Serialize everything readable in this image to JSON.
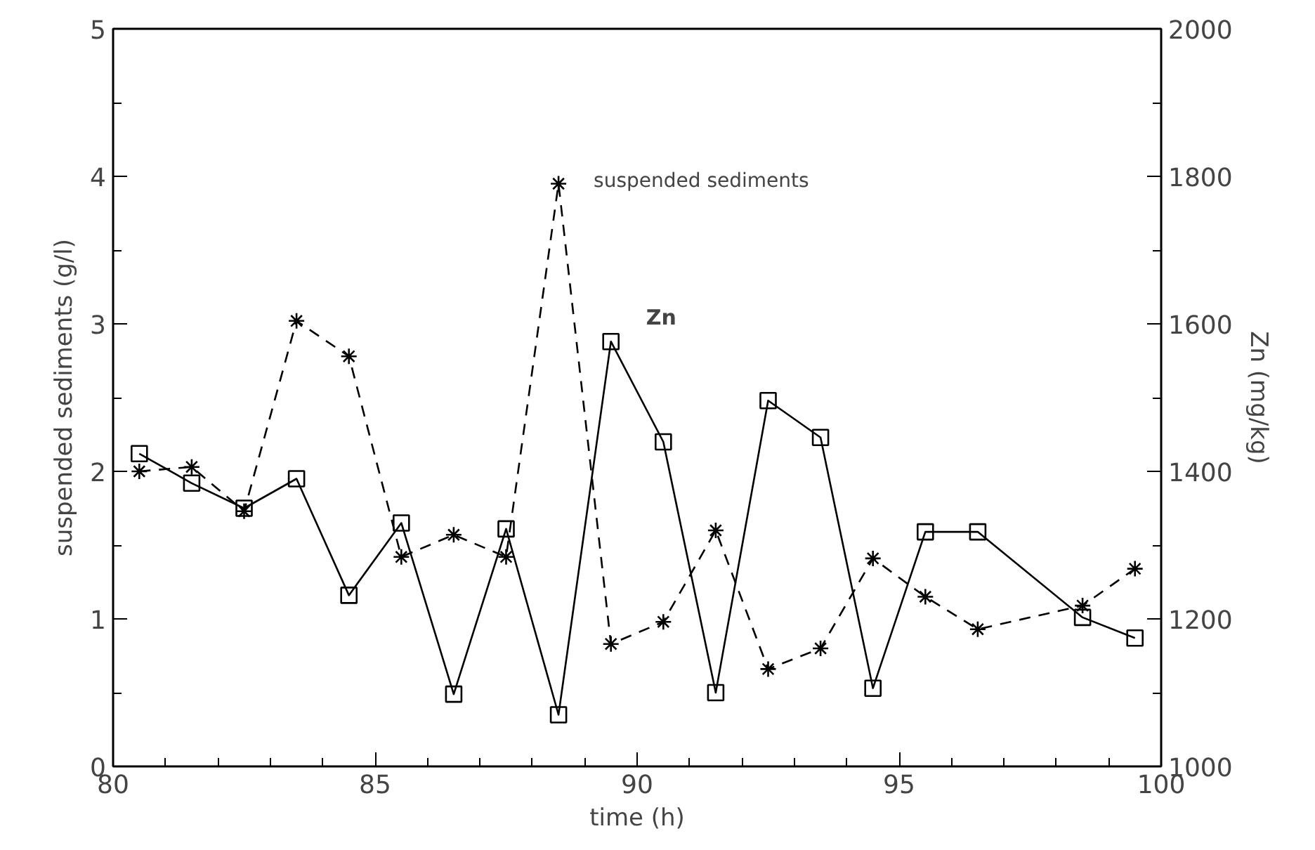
{
  "chart_data": {
    "type": "line",
    "xlabel": "time (h)",
    "ylabel": "suspended sediments (g/l)",
    "y2label": "Zn (mg/kg)",
    "x": [
      80.5,
      81.5,
      82.5,
      83.5,
      84.5,
      85.5,
      86.5,
      87.5,
      88.5,
      89.5,
      90.5,
      91.5,
      92.5,
      93.5,
      94.5,
      95.5,
      96.5,
      98.5,
      99.5
    ],
    "series": [
      {
        "name": "suspended sediments",
        "color": "#000000",
        "marker": "cross",
        "line_style": "dashed",
        "values": [
          2.0,
          2.03,
          1.73,
          3.02,
          2.78,
          1.42,
          1.57,
          1.42,
          3.95,
          0.83,
          0.98,
          1.6,
          0.66,
          0.8,
          1.41,
          1.15,
          0.93,
          1.09,
          1.34
        ]
      },
      {
        "name": "Zn",
        "color": "#000000",
        "marker": "square",
        "line_style": "solid",
        "axis": "y2",
        "values": [
          1424,
          1384,
          1350,
          1390,
          1232,
          1330,
          1098,
          1322,
          1070,
          1576,
          1440,
          1100,
          1496,
          1446,
          1106,
          1318,
          1318,
          1202,
          1174
        ]
      }
    ],
    "xlim": [
      80,
      100
    ],
    "ylim": [
      0,
      5
    ],
    "y2lim": [
      1000,
      2000
    ],
    "xticks": [
      80,
      {
        "value": 81,
        "label": null
      },
      {
        "value": 82,
        "label": null
      },
      {
        "value": 83,
        "label": null
      },
      {
        "value": 84,
        "label": null
      },
      85,
      {
        "value": 86,
        "label": null
      },
      {
        "value": 87,
        "label": null
      },
      {
        "value": 88,
        "label": null
      },
      {
        "value": 89,
        "label": null
      },
      90,
      {
        "value": 91,
        "label": null
      },
      {
        "value": 92,
        "label": null
      },
      {
        "value": 93,
        "label": null
      },
      {
        "value": 94,
        "label": null
      },
      95,
      {
        "value": 96,
        "label": null
      },
      {
        "value": 97,
        "label": null
      },
      {
        "value": 98,
        "label": null
      },
      {
        "value": 99,
        "label": null
      },
      100
    ],
    "yticks": [
      0,
      {
        "value": 0.5,
        "label": null
      },
      1,
      {
        "value": 1.5,
        "label": null
      },
      2,
      {
        "value": 2.5,
        "label": null
      },
      3,
      {
        "value": 3.5,
        "label": null
      },
      4,
      {
        "value": 4.5,
        "label": null
      },
      5
    ],
    "y2ticks": [
      1000,
      {
        "value": 1100,
        "label": null
      },
      1200,
      {
        "value": 1300,
        "label": null
      },
      1400,
      {
        "value": 1500,
        "label": null
      },
      1600,
      {
        "value": 1700,
        "label": null
      },
      1800,
      {
        "value": 1900,
        "label": null
      },
      2000
    ],
    "grid": false
  }
}
